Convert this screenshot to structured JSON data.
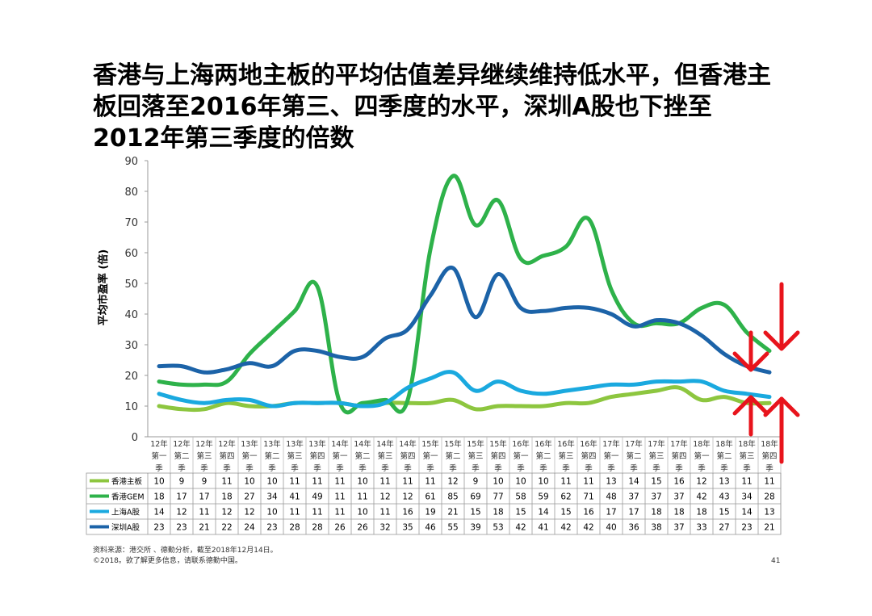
{
  "title_lines": [
    "香港与上海两地主板的平均估值差异继续维持低水平，但香港主",
    "板回落至2016年第三、四季度的水平，深圳A股也下挫至",
    "2012年第三季度的倍数"
  ],
  "footer": {
    "source": "资料来源：港交所 、德勤分析，截至2018年12月14日。",
    "copyright": "©2018。欲了解更多信息，请联系德勤中国。",
    "page_number": "41"
  },
  "chart_data": {
    "type": "line",
    "title": "",
    "ylabel": "平均市盈率 (倍)",
    "ylim": [
      0,
      90
    ],
    "yticks": [
      0,
      10,
      20,
      30,
      40,
      50,
      60,
      70,
      80,
      90
    ],
    "grid": false,
    "legend": "data-table",
    "categories": [
      [
        "12年",
        "第一",
        "季"
      ],
      [
        "12年",
        "第二",
        "季"
      ],
      [
        "12年",
        "第三",
        "季"
      ],
      [
        "12年",
        "第四",
        "季"
      ],
      [
        "13年",
        "第一",
        "季"
      ],
      [
        "13年",
        "第二",
        "季"
      ],
      [
        "13年",
        "第三",
        "季"
      ],
      [
        "13年",
        "第四",
        "季"
      ],
      [
        "14年",
        "第一",
        "季"
      ],
      [
        "14年",
        "第二",
        "季"
      ],
      [
        "14年",
        "第三",
        "季"
      ],
      [
        "14年",
        "第四",
        "季"
      ],
      [
        "15年",
        "第一",
        "季"
      ],
      [
        "15年",
        "第二",
        "季"
      ],
      [
        "15年",
        "第三",
        "季"
      ],
      [
        "15年",
        "第四",
        "季"
      ],
      [
        "16年",
        "第一",
        "季"
      ],
      [
        "16年",
        "第二",
        "季"
      ],
      [
        "16年",
        "第三",
        "季"
      ],
      [
        "16年",
        "第四",
        "季"
      ],
      [
        "17年",
        "第一",
        "季"
      ],
      [
        "17年",
        "第二",
        "季"
      ],
      [
        "17年",
        "第三",
        "季"
      ],
      [
        "17年",
        "第四",
        "季"
      ],
      [
        "18年",
        "第一",
        "季"
      ],
      [
        "18年",
        "第二",
        "季"
      ],
      [
        "18年",
        "第三",
        "季"
      ],
      [
        "18年",
        "第四",
        "季"
      ]
    ],
    "series": [
      {
        "name": "香港主板",
        "color": "#8dc63f",
        "values": [
          10,
          9,
          9,
          11,
          10,
          10,
          11,
          11,
          11,
          10,
          11,
          11,
          11,
          12,
          9,
          10,
          10,
          10,
          11,
          11,
          13,
          14,
          15,
          16,
          12,
          13,
          11,
          11
        ]
      },
      {
        "name": "香港GEM",
        "color": "#2eb24a",
        "values": [
          18,
          17,
          17,
          18,
          27,
          34,
          41,
          49,
          11,
          11,
          12,
          12,
          61,
          85,
          69,
          77,
          58,
          59,
          62,
          71,
          48,
          37,
          37,
          37,
          42,
          43,
          34,
          28
        ]
      },
      {
        "name": "上海A股",
        "color": "#1aa9df",
        "values": [
          14,
          12,
          11,
          12,
          12,
          10,
          11,
          11,
          11,
          10,
          11,
          16,
          19,
          21,
          15,
          18,
          15,
          14,
          15,
          16,
          17,
          17,
          18,
          18,
          18,
          15,
          14,
          13
        ]
      },
      {
        "name": "深圳A股",
        "color": "#1c63a8",
        "values": [
          23,
          23,
          21,
          22,
          24,
          23,
          28,
          28,
          26,
          26,
          32,
          35,
          46,
          55,
          39,
          53,
          42,
          41,
          42,
          42,
          40,
          36,
          38,
          37,
          33,
          27,
          23,
          21
        ]
      }
    ],
    "annotations": [
      {
        "type": "arrow-down",
        "color": "#e8141c"
      },
      {
        "type": "arrow-down",
        "color": "#e8141c"
      },
      {
        "type": "arrow-up",
        "color": "#e8141c"
      },
      {
        "type": "arrow-up",
        "color": "#e8141c"
      }
    ]
  }
}
